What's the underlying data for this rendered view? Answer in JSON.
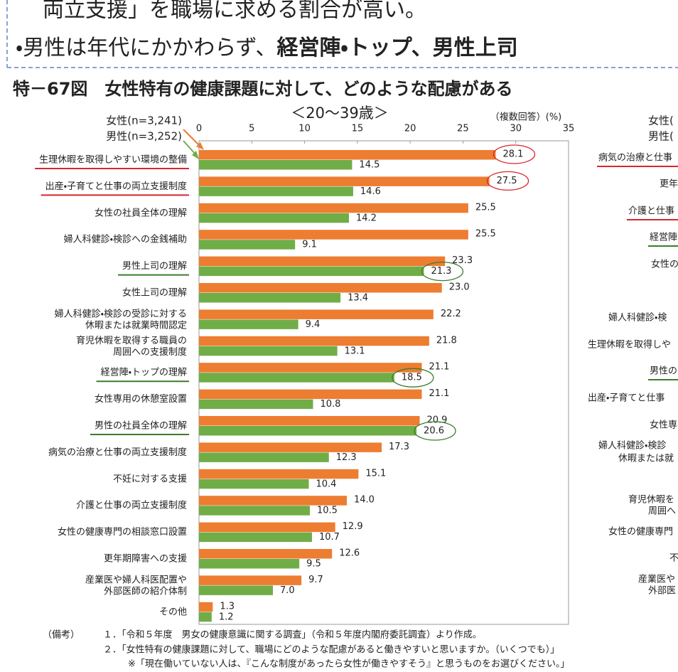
{
  "header": {
    "line1": "両立支援」を職場に求める割合が高い。",
    "line2": "・男性は年代にかかわらず、",
    "line2_bold": "経営陣・トップ、男性上司"
  },
  "chart_data": {
    "type": "bar",
    "orientation": "horizontal",
    "title": "特－67図　女性特有の健康課題に対して、どのような配慮がある",
    "subtitle": "＜20～39歳＞",
    "unit_note": "（複数回答）(%)",
    "categories": [
      "生理休暇を取得しやすい環境の整備",
      "出産・子育てと仕事の両立支援制度",
      "女性の社員全体の理解",
      "婦人科健診・検診への金銭補助",
      "男性上司の理解",
      "女性上司の理解",
      [
        "婦人科健診・検診の受診に対する",
        "休暇または就業時間認定"
      ],
      [
        "育児休暇を取得する職員の",
        "周囲への支援制度"
      ],
      "経営陣・トップの理解",
      "女性専用の休憩室設置",
      "男性の社員全体の理解",
      "病気の治療と仕事の両立支援制度",
      "不妊に対する支援",
      "介護と仕事の両立支援制度",
      "女性の健康専門の相談窓口設置",
      "更年期障害への支援",
      [
        "産業医や婦人科医配置や",
        "外部医師の紹介体制"
      ],
      "その他"
    ],
    "series": [
      {
        "name": "女性(n=3,241)",
        "color": "#ed7d31",
        "values": [
          28.1,
          27.5,
          25.5,
          25.5,
          23.3,
          23.0,
          22.2,
          21.8,
          21.1,
          21.1,
          20.9,
          17.3,
          15.1,
          14.0,
          12.9,
          12.6,
          9.7,
          1.3
        ],
        "value_labels": [
          "28.1",
          "27.5",
          "25.5",
          "25.5",
          "23.3",
          "23.0",
          "22.2",
          "21.8",
          "21.1",
          "21.1",
          "20.9",
          "17.3",
          "15.1",
          "14.0",
          "12.9",
          "12.6",
          "9.7",
          "1.3"
        ]
      },
      {
        "name": "男性(n=3,252)",
        "color": "#70ad47",
        "values": [
          14.5,
          14.6,
          14.2,
          9.1,
          21.3,
          13.4,
          9.4,
          13.1,
          18.5,
          10.8,
          20.6,
          12.3,
          10.4,
          10.5,
          10.7,
          9.5,
          7.0,
          1.2
        ],
        "value_labels": [
          "14.5",
          "14.6",
          "14.2",
          "9.1",
          "21.3",
          "13.4",
          "9.4",
          "13.1",
          "18.5",
          "10.8",
          "20.6",
          "12.3",
          "10.4",
          "10.5",
          "10.7",
          "9.5",
          "7.0",
          "1.2"
        ]
      }
    ],
    "xlim": [
      0,
      35
    ],
    "xticks": [
      0,
      5,
      10,
      15,
      20,
      25,
      30,
      35
    ],
    "highlights": [
      {
        "series": 0,
        "categories": [
          0,
          1
        ],
        "color": "#d9262b"
      },
      {
        "series": 1,
        "categories": [
          4,
          8,
          10
        ],
        "color": "#3a7d2c"
      }
    ]
  },
  "footnotes": {
    "label": "（備考）",
    "items": [
      "１．「令和５年度　男女の健康意識に関する調査」（令和５年度内閣府委託調査）より作成。",
      "２．「女性特有の健康課題に対して、職場にどのような配慮があると働きやすいと思いますか。（いくつでも）」",
      "※「現在働いていない人は、『こんな制度があったら女性が働きやすそう』と思うものをお選びください。」"
    ]
  },
  "right_panel": {
    "legend": [
      "女性(",
      "男性("
    ],
    "labels": [
      "病気の治療と仕事",
      "更年",
      "介護と仕事",
      "経営陣",
      "女性の",
      "婦人科健診・検",
      "生理休暇を取得しや",
      "男性の",
      "出産・子育てと仕事",
      "女性専",
      "婦人科健診・検診",
      "休暇または就",
      "育児休暇を",
      "周囲へ",
      "女性の健康専門",
      "不",
      "産業医や",
      "外部医"
    ]
  }
}
